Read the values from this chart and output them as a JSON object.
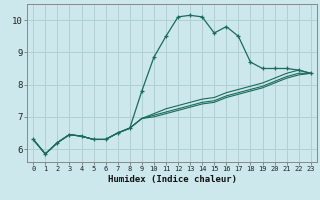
{
  "xlabel": "Humidex (Indice chaleur)",
  "bg_color": "#cce8ec",
  "grid_color": "#b0d0d4",
  "line_color": "#1a6b5a",
  "xlim": [
    -0.5,
    23.5
  ],
  "ylim": [
    5.6,
    10.5
  ],
  "xticks": [
    0,
    1,
    2,
    3,
    4,
    5,
    6,
    7,
    8,
    9,
    10,
    11,
    12,
    13,
    14,
    15,
    16,
    17,
    18,
    19,
    20,
    21,
    22,
    23
  ],
  "yticks": [
    6,
    7,
    8,
    9,
    10
  ],
  "series1": [
    6.3,
    5.85,
    6.2,
    6.45,
    6.4,
    6.3,
    6.3,
    6.5,
    6.65,
    7.8,
    8.85,
    9.5,
    10.1,
    10.15,
    10.1,
    9.6,
    9.8,
    9.5,
    8.7,
    8.5,
    8.5,
    8.5,
    8.45,
    8.35
  ],
  "series2": [
    6.3,
    5.85,
    6.2,
    6.45,
    6.4,
    6.3,
    6.3,
    6.5,
    6.65,
    6.95,
    7.1,
    7.25,
    7.35,
    7.45,
    7.55,
    7.6,
    7.75,
    7.85,
    7.95,
    8.05,
    8.2,
    8.35,
    8.45,
    8.35
  ],
  "series3": [
    6.3,
    5.85,
    6.2,
    6.45,
    6.4,
    6.3,
    6.3,
    6.5,
    6.65,
    6.95,
    7.05,
    7.15,
    7.25,
    7.35,
    7.45,
    7.5,
    7.65,
    7.75,
    7.85,
    7.95,
    8.1,
    8.25,
    8.35,
    8.35
  ],
  "series4": [
    6.3,
    5.85,
    6.2,
    6.45,
    6.4,
    6.3,
    6.3,
    6.5,
    6.65,
    6.95,
    7.0,
    7.1,
    7.2,
    7.3,
    7.4,
    7.45,
    7.6,
    7.7,
    7.8,
    7.9,
    8.05,
    8.2,
    8.3,
    8.35
  ]
}
